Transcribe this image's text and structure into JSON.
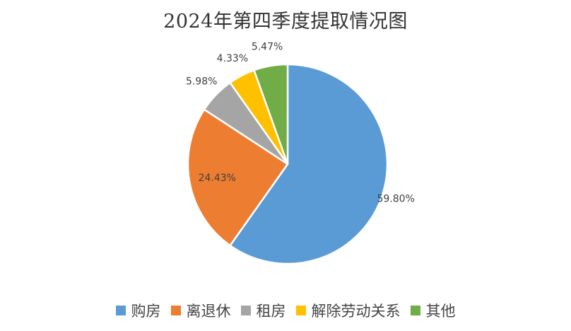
{
  "chart_data": {
    "type": "pie",
    "title": "2024年第四季度提取情况图",
    "categories": [
      "购房",
      "离退休",
      "租房",
      "解除劳动关系",
      "其他"
    ],
    "values": [
      59.8,
      24.43,
      5.98,
      4.33,
      5.47
    ],
    "labels": [
      "59.80%",
      "24.43%",
      "5.98%",
      "4.33%",
      "5.47%"
    ],
    "colors": [
      "#5B9BD5",
      "#ED7D31",
      "#A5A5A5",
      "#FFC000",
      "#70AD47"
    ],
    "start_angle_deg": 0,
    "direction": "clockwise",
    "legend_position": "bottom"
  }
}
